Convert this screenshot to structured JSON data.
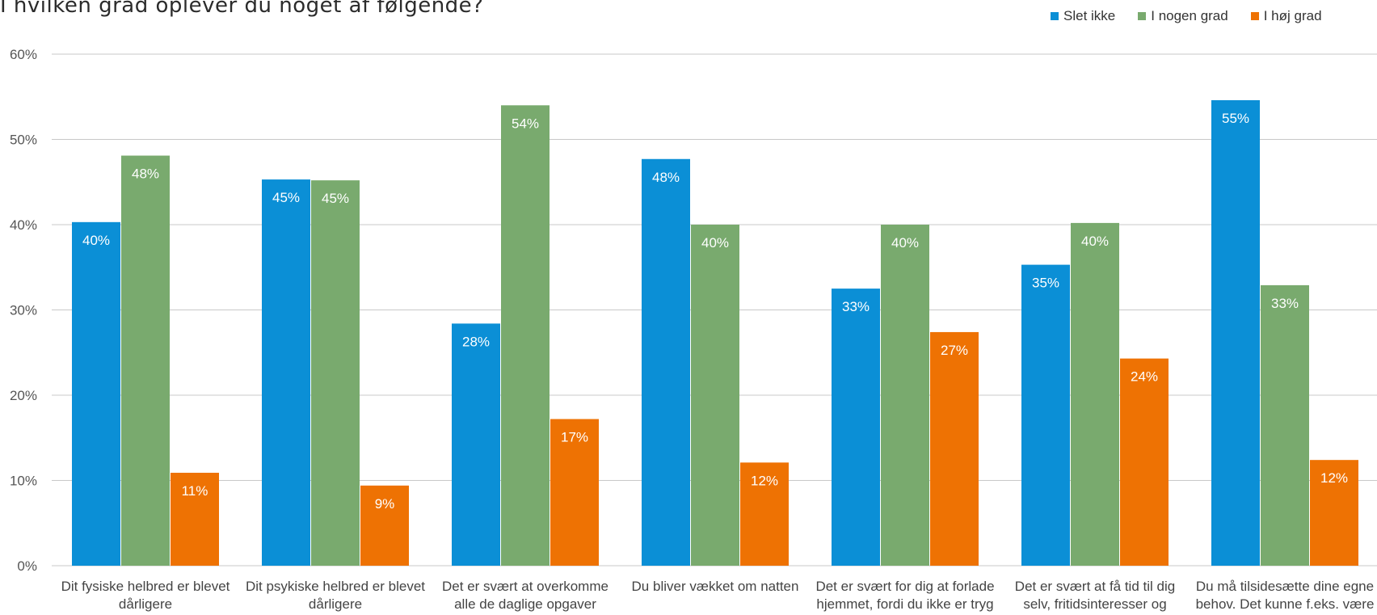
{
  "colors": {
    "slet_ikke": "#0b8fd6",
    "i_nogen_grad": "#79aa6e",
    "i_hoj_grad": "#ee7203",
    "grid": "#c8c8c8"
  },
  "chart_data": {
    "type": "bar",
    "title": "I hvilken grad oplever du noget af følgende?",
    "xlabel": "",
    "ylabel": "",
    "ylim": [
      0,
      60
    ],
    "y_ticks": [
      "0%",
      "10%",
      "20%",
      "30%",
      "40%",
      "50%",
      "60%"
    ],
    "grid": true,
    "legend_position": "top-right",
    "categories": [
      [
        "Dit fysiske helbred er blevet",
        "dårligere"
      ],
      [
        "Dit psykiske helbred er blevet",
        "dårligere"
      ],
      [
        "Det er svært at overkomme",
        "alle de daglige opgaver"
      ],
      [
        "Du bliver vækket om natten"
      ],
      [
        "Det er svært for dig at forlade",
        "hjemmet, fordi du ikke er tryg"
      ],
      [
        "Det er svært at få tid til dig",
        "selv, fritidsinteresser og"
      ],
      [
        "Du må tilsidesætte dine egne",
        "behov. Det kunne f.eks. være"
      ]
    ],
    "series": [
      {
        "name": "Slet ikke",
        "color_key": "slet_ikke",
        "values": [
          40.3,
          45.3,
          28.4,
          47.7,
          32.5,
          35.3,
          54.6
        ],
        "labels": [
          "40%",
          "45%",
          "28%",
          "48%",
          "33%",
          "35%",
          "55%"
        ]
      },
      {
        "name": "I nogen grad",
        "color_key": "i_nogen_grad",
        "values": [
          48.1,
          45.2,
          54.0,
          40.0,
          40.0,
          40.2,
          32.9
        ],
        "labels": [
          "48%",
          "45%",
          "54%",
          "40%",
          "40%",
          "40%",
          "33%"
        ]
      },
      {
        "name": "I høj grad",
        "color_key": "i_hoj_grad",
        "values": [
          10.9,
          9.4,
          17.2,
          12.1,
          27.4,
          24.3,
          12.4
        ],
        "labels": [
          "11%",
          "9%",
          "17%",
          "12%",
          "27%",
          "24%",
          "12%"
        ]
      }
    ]
  }
}
